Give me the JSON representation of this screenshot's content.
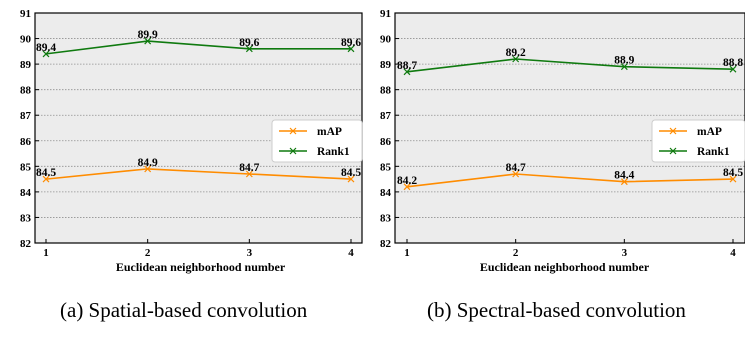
{
  "colors": {
    "map": "#ff8c00",
    "rank1": "#0f7a0f",
    "plot_bg": "#ececec",
    "grid": "#909090"
  },
  "captions": [
    "(a)  Spatial-based convolution",
    "(b)  Spectral-based convolution"
  ],
  "chart_data": [
    {
      "type": "line",
      "x": [
        1,
        2,
        3,
        4
      ],
      "xticks": [
        "1",
        "2",
        "3",
        "4"
      ],
      "xlabel": "Euclidean neighborhood number",
      "ylabel": "",
      "ylim": [
        82,
        91
      ],
      "yticks": [
        82,
        83,
        84,
        85,
        86,
        87,
        88,
        89,
        90,
        91
      ],
      "grid": "horizontal dotted",
      "legend": "right",
      "series": [
        {
          "name": "mAP",
          "color": "#ff8c00",
          "marker": "x",
          "values": [
            84.5,
            84.9,
            84.7,
            84.5
          ],
          "labels": [
            "84.5",
            "84.9",
            "84.7",
            "84.5"
          ]
        },
        {
          "name": "Rank1",
          "color": "#0f7a0f",
          "marker": "x",
          "values": [
            89.4,
            89.9,
            89.6,
            89.6
          ],
          "labels": [
            "89.4",
            "89.9",
            "89.6",
            "89.6"
          ]
        }
      ]
    },
    {
      "type": "line",
      "x": [
        1,
        2,
        3,
        4
      ],
      "xticks": [
        "1",
        "2",
        "3",
        "4"
      ],
      "xlabel": "Euclidean neighborhood number",
      "ylabel": "",
      "ylim": [
        82,
        91
      ],
      "yticks": [
        82,
        83,
        84,
        85,
        86,
        87,
        88,
        89,
        90,
        91
      ],
      "grid": "horizontal dotted",
      "legend": "right",
      "series": [
        {
          "name": "mAP",
          "color": "#ff8c00",
          "marker": "x",
          "values": [
            84.2,
            84.7,
            84.4,
            84.5
          ],
          "labels": [
            "84.2",
            "84.7",
            "84.4",
            "84.5"
          ]
        },
        {
          "name": "Rank1",
          "color": "#0f7a0f",
          "marker": "x",
          "values": [
            88.7,
            89.2,
            88.9,
            88.8
          ],
          "labels": [
            "88.7",
            "89.2",
            "88.9",
            "88.8"
          ]
        }
      ]
    }
  ]
}
